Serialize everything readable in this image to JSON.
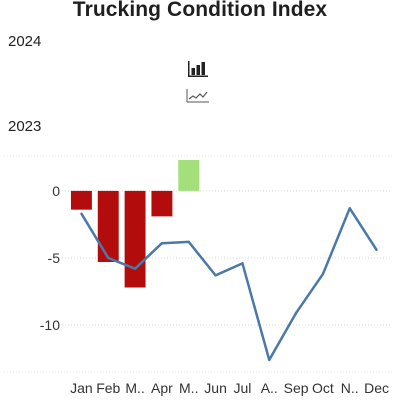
{
  "title": "Trucking Condition Index",
  "sections": {
    "top_year": "2024",
    "bottom_year": "2023"
  },
  "icons": {
    "bar_chart": "bar-chart-icon",
    "line_chart": "line-chart-icon"
  },
  "chart_data": {
    "type": "bar",
    "title": "Trucking Condition Index",
    "categories": [
      "Jan",
      "Feb",
      "M..",
      "Apr",
      "M..",
      "Jun",
      "Jul",
      "A..",
      "Sep",
      "Oct",
      "N..",
      "Dec"
    ],
    "series": [
      {
        "name": "2024",
        "type": "bar",
        "values": [
          -1.4,
          -5.3,
          -7.2,
          -1.9,
          2.3,
          null,
          null,
          null,
          null,
          null,
          null,
          null
        ]
      },
      {
        "name": "2023",
        "type": "line",
        "values": [
          -1.7,
          -5.0,
          -5.8,
          -3.9,
          -3.8,
          -6.3,
          -5.4,
          -12.6,
          -9.1,
          -6.2,
          -1.3,
          -4.4
        ]
      }
    ],
    "ylim": [
      -13.5,
      2.6
    ],
    "yticks": [
      0,
      -5,
      -10
    ],
    "ytick_labels": [
      "0",
      "-5",
      "-10"
    ],
    "xlabel": "",
    "ylabel": "",
    "grid": true,
    "colors": {
      "negative_bar": "#b30c0c",
      "positive_bar": "#a3e07c",
      "line": "#4a78a8",
      "grid": "#d9d9d9"
    }
  }
}
